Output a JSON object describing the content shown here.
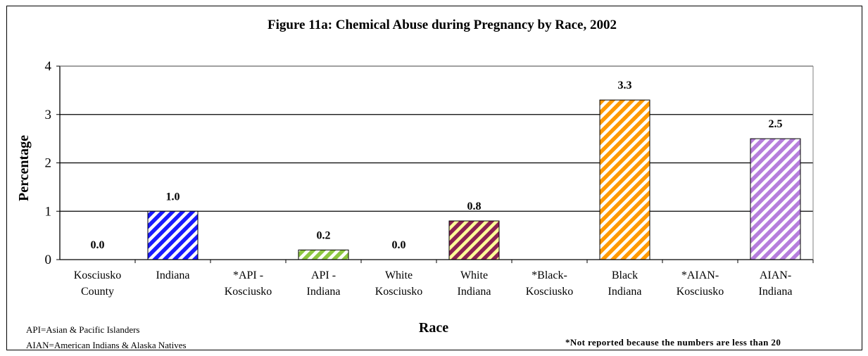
{
  "chart_data": {
    "type": "bar",
    "title": "Figure 11a: Chemical Abuse during Pregnancy by Race, 2002",
    "xlabel": "Race",
    "ylabel": "Percentage",
    "ylim": [
      0,
      4
    ],
    "yticks": [
      0,
      1,
      2,
      3,
      4
    ],
    "grid": true,
    "categories": [
      [
        "Kosciusko",
        "County"
      ],
      [
        "Indiana"
      ],
      [
        "*API -",
        "Kosciusko"
      ],
      [
        "API  -",
        "Indiana"
      ],
      [
        "White",
        "Kosciusko"
      ],
      [
        "White",
        "Indiana"
      ],
      [
        "*Black-",
        "Kosciusko"
      ],
      [
        "Black",
        "Indiana"
      ],
      [
        "*AIAN-",
        "Kosciusko"
      ],
      [
        "AIAN-",
        "Indiana"
      ]
    ],
    "values": [
      0.0,
      1.0,
      null,
      0.2,
      0.0,
      0.8,
      null,
      3.3,
      null,
      2.5
    ],
    "value_labels": [
      "0.0",
      "1.0",
      "",
      "0.2",
      "0.0",
      "0.8",
      "",
      "3.3",
      "",
      "2.5"
    ],
    "bar_colors": [
      [
        "#ffffff",
        "#ffffff"
      ],
      [
        "#1a1aff",
        "#ffffff"
      ],
      [
        "#ffffff",
        "#ffffff"
      ],
      [
        "#8cc63f",
        "#ffffff"
      ],
      [
        "#ffffff",
        "#ffffff"
      ],
      [
        "#8b2252",
        "#ffff99"
      ],
      [
        "#ffffff",
        "#ffffff"
      ],
      [
        "#ff9900",
        "#ffffff"
      ],
      [
        "#ffffff",
        "#ffffff"
      ],
      [
        "#b57edc",
        "#ffffff"
      ]
    ]
  },
  "notes": {
    "abbrev_api": "API=Asian & Pacific Islanders",
    "abbrev_aian": "AIAN=American Indians & Alaska Natives",
    "not_reported": "*Not reported because the numbers are less than 20"
  }
}
